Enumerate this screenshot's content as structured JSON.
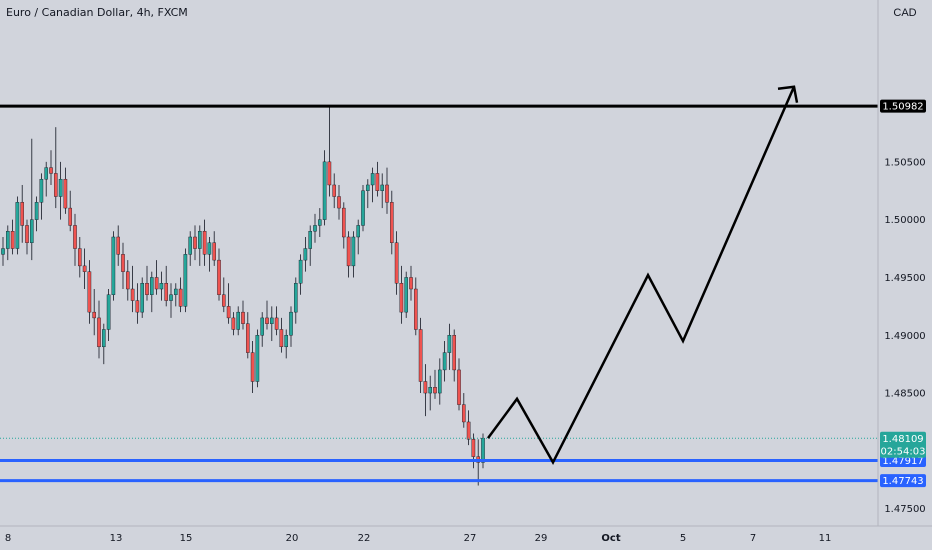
{
  "header": {
    "title": "Euro / Canadian Dollar, 4h, FXCM",
    "currency": "CAD"
  },
  "colors": {
    "up": "#26a69a",
    "down": "#ef5350",
    "support": "#2962ff",
    "resistance": "#000000",
    "background": "#d1d4dc"
  },
  "chart_data": {
    "type": "candlestick",
    "ylim": [
      1.4735,
      1.519
    ],
    "yticks": [
      "1.47500",
      "1.48500",
      "1.49000",
      "1.49500",
      "1.50000",
      "1.50500"
    ],
    "xticks": [
      "8",
      "13",
      "15",
      "20",
      "22",
      "27",
      "29",
      "Oct",
      "5",
      "7",
      "11"
    ],
    "levels": [
      {
        "name": "resistance",
        "value": "1.50982"
      },
      {
        "name": "support-upper",
        "value": "1.47917"
      },
      {
        "name": "support-lower",
        "value": "1.47743"
      }
    ],
    "current_price": {
      "value": "1.48109",
      "countdown": "02:54:03"
    },
    "projection_path": [
      1.4811,
      1.4845,
      1.479,
      1.4952,
      1.4895,
      1.5115
    ],
    "candles": [
      [
        1.497,
        1.4985,
        1.496,
        1.4975
      ],
      [
        1.4975,
        1.4995,
        1.4965,
        1.499
      ],
      [
        1.499,
        1.5,
        1.497,
        1.4975
      ],
      [
        1.4975,
        1.502,
        1.497,
        1.5015
      ],
      [
        1.5015,
        1.503,
        1.498,
        1.4995
      ],
      [
        1.4995,
        1.5,
        1.497,
        1.498
      ],
      [
        1.498,
        1.507,
        1.4965,
        1.5
      ],
      [
        1.5,
        1.502,
        1.499,
        1.5015
      ],
      [
        1.5015,
        1.504,
        1.5,
        1.5035
      ],
      [
        1.5035,
        1.505,
        1.502,
        1.5045
      ],
      [
        1.5045,
        1.506,
        1.503,
        1.504
      ],
      [
        1.504,
        1.508,
        1.501,
        1.502
      ],
      [
        1.502,
        1.505,
        1.5,
        1.5035
      ],
      [
        1.5035,
        1.5045,
        1.5005,
        1.501
      ],
      [
        1.501,
        1.5025,
        1.499,
        1.4995
      ],
      [
        1.4995,
        1.5005,
        1.496,
        1.4975
      ],
      [
        1.4975,
        1.4985,
        1.495,
        1.496
      ],
      [
        1.496,
        1.4975,
        1.494,
        1.4955
      ],
      [
        1.4955,
        1.4965,
        1.491,
        1.492
      ],
      [
        1.492,
        1.494,
        1.49,
        1.4915
      ],
      [
        1.4915,
        1.493,
        1.488,
        1.489
      ],
      [
        1.489,
        1.491,
        1.4875,
        1.4905
      ],
      [
        1.4905,
        1.494,
        1.4895,
        1.4935
      ],
      [
        1.4935,
        1.499,
        1.493,
        1.4985
      ],
      [
        1.4985,
        1.4995,
        1.496,
        1.497
      ],
      [
        1.497,
        1.498,
        1.494,
        1.4955
      ],
      [
        1.4955,
        1.4965,
        1.493,
        1.494
      ],
      [
        1.494,
        1.496,
        1.492,
        1.493
      ],
      [
        1.493,
        1.4945,
        1.491,
        1.492
      ],
      [
        1.492,
        1.495,
        1.4915,
        1.4945
      ],
      [
        1.4945,
        1.496,
        1.493,
        1.4935
      ],
      [
        1.4935,
        1.4955,
        1.492,
        1.495
      ],
      [
        1.495,
        1.4965,
        1.4935,
        1.494
      ],
      [
        1.494,
        1.4955,
        1.493,
        1.4945
      ],
      [
        1.4945,
        1.496,
        1.4925,
        1.493
      ],
      [
        1.493,
        1.4945,
        1.4915,
        1.4935
      ],
      [
        1.4935,
        1.4945,
        1.4925,
        1.494
      ],
      [
        1.494,
        1.495,
        1.492,
        1.4925
      ],
      [
        1.4925,
        1.4975,
        1.492,
        1.497
      ],
      [
        1.497,
        1.499,
        1.496,
        1.4985
      ],
      [
        1.4985,
        1.4995,
        1.4965,
        1.4975
      ],
      [
        1.4975,
        1.4995,
        1.496,
        1.499
      ],
      [
        1.499,
        1.5,
        1.496,
        1.497
      ],
      [
        1.497,
        1.4985,
        1.4955,
        1.498
      ],
      [
        1.498,
        1.499,
        1.496,
        1.4965
      ],
      [
        1.4965,
        1.4975,
        1.493,
        1.4935
      ],
      [
        1.4935,
        1.495,
        1.492,
        1.4925
      ],
      [
        1.4925,
        1.4945,
        1.491,
        1.4915
      ],
      [
        1.4915,
        1.492,
        1.49,
        1.4905
      ],
      [
        1.4905,
        1.4925,
        1.49,
        1.492
      ],
      [
        1.492,
        1.493,
        1.4905,
        1.491
      ],
      [
        1.491,
        1.492,
        1.488,
        1.4885
      ],
      [
        1.4885,
        1.4895,
        1.485,
        1.486
      ],
      [
        1.486,
        1.4905,
        1.4855,
        1.49
      ],
      [
        1.49,
        1.492,
        1.489,
        1.4915
      ],
      [
        1.4915,
        1.493,
        1.4905,
        1.491
      ],
      [
        1.491,
        1.4925,
        1.4895,
        1.4915
      ],
      [
        1.4915,
        1.4925,
        1.49,
        1.4905
      ],
      [
        1.4905,
        1.4915,
        1.4885,
        1.489
      ],
      [
        1.489,
        1.4905,
        1.488,
        1.49
      ],
      [
        1.49,
        1.4925,
        1.489,
        1.492
      ],
      [
        1.492,
        1.495,
        1.491,
        1.4945
      ],
      [
        1.4945,
        1.497,
        1.4935,
        1.4965
      ],
      [
        1.4965,
        1.4985,
        1.4955,
        1.4975
      ],
      [
        1.4975,
        1.4995,
        1.496,
        1.499
      ],
      [
        1.499,
        1.5005,
        1.498,
        1.4995
      ],
      [
        1.4995,
        1.501,
        1.4985,
        1.5
      ],
      [
        1.5,
        1.506,
        1.4995,
        1.505
      ],
      [
        1.505,
        1.5098,
        1.502,
        1.503
      ],
      [
        1.503,
        1.504,
        1.501,
        1.502
      ],
      [
        1.502,
        1.503,
        1.5,
        1.501
      ],
      [
        1.501,
        1.5015,
        1.4975,
        1.4985
      ],
      [
        1.4985,
        1.499,
        1.495,
        1.496
      ],
      [
        1.496,
        1.499,
        1.495,
        1.4985
      ],
      [
        1.4985,
        1.5,
        1.497,
        1.4995
      ],
      [
        1.4995,
        1.503,
        1.499,
        1.5025
      ],
      [
        1.5025,
        1.5035,
        1.501,
        1.503
      ],
      [
        1.503,
        1.5045,
        1.5015,
        1.504
      ],
      [
        1.504,
        1.505,
        1.502,
        1.5025
      ],
      [
        1.5025,
        1.504,
        1.501,
        1.503
      ],
      [
        1.503,
        1.5045,
        1.5005,
        1.5015
      ],
      [
        1.5015,
        1.5025,
        1.497,
        1.498
      ],
      [
        1.498,
        1.499,
        1.4935,
        1.4945
      ],
      [
        1.4945,
        1.496,
        1.491,
        1.492
      ],
      [
        1.492,
        1.4955,
        1.4915,
        1.495
      ],
      [
        1.495,
        1.496,
        1.493,
        1.494
      ],
      [
        1.494,
        1.495,
        1.49,
        1.4905
      ],
      [
        1.4905,
        1.4915,
        1.485,
        1.486
      ],
      [
        1.486,
        1.4875,
        1.483,
        1.485
      ],
      [
        1.485,
        1.4865,
        1.4835,
        1.4855
      ],
      [
        1.4855,
        1.487,
        1.4845,
        1.485
      ],
      [
        1.485,
        1.488,
        1.484,
        1.487
      ],
      [
        1.487,
        1.4895,
        1.486,
        1.4885
      ],
      [
        1.4885,
        1.491,
        1.487,
        1.49
      ],
      [
        1.49,
        1.4905,
        1.486,
        1.487
      ],
      [
        1.487,
        1.488,
        1.4835,
        1.484
      ],
      [
        1.484,
        1.485,
        1.482,
        1.4825
      ],
      [
        1.4825,
        1.4835,
        1.4805,
        1.481
      ],
      [
        1.481,
        1.4815,
        1.4785,
        1.4795
      ],
      [
        1.4795,
        1.481,
        1.477,
        1.479
      ],
      [
        1.479,
        1.4815,
        1.4785,
        1.4811
      ]
    ]
  }
}
